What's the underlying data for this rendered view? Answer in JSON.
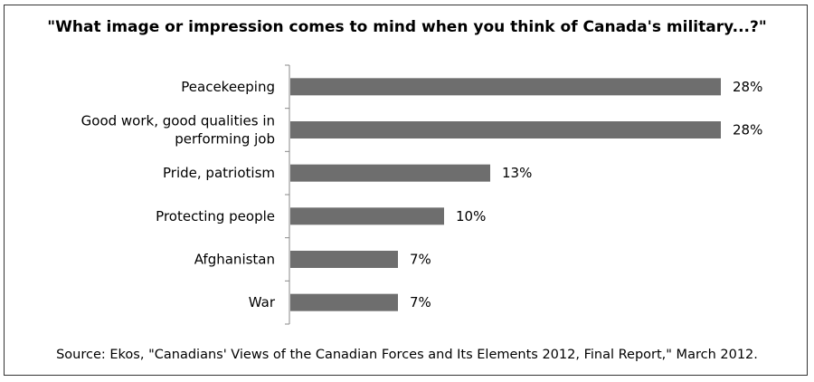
{
  "chart_data": {
    "type": "bar",
    "orientation": "horizontal",
    "title": "\"What image or impression comes to mind when you think of Canada's military...?\"",
    "categories": [
      "Peacekeeping",
      "Good work, good qualities in performing job",
      "Pride, patriotism",
      "Protecting people",
      "Afghanistan",
      "War"
    ],
    "category_lines": [
      [
        "Peacekeeping"
      ],
      [
        "Good work, good qualities in",
        "performing job"
      ],
      [
        "Pride, patriotism"
      ],
      [
        "Protecting people"
      ],
      [
        "Afghanistan"
      ],
      [
        "War"
      ]
    ],
    "values": [
      28,
      28,
      13,
      10,
      7,
      7
    ],
    "value_labels": [
      "28%",
      "28%",
      "13%",
      "10%",
      "7%",
      "7%"
    ],
    "xlim": [
      0,
      28
    ],
    "bar_color": "#6e6e6e",
    "grid": false,
    "legend": "none"
  },
  "source": "Source: Ekos, \"Canadians' Views of the Canadian Forces and Its Elements 2012, Final Report,\" March 2012."
}
